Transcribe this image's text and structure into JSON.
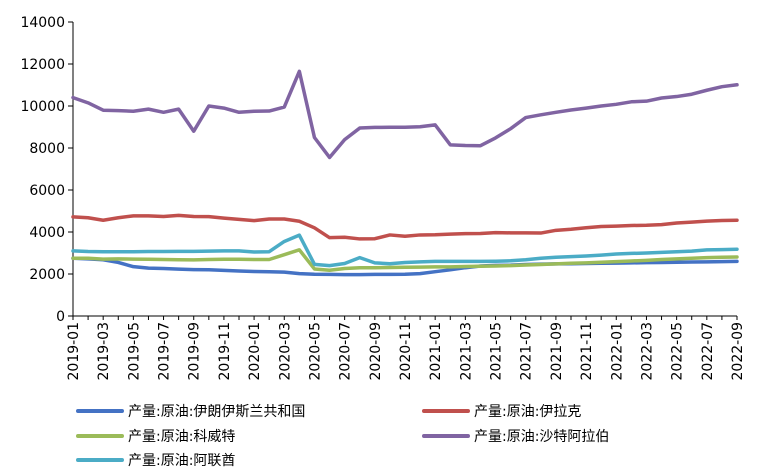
{
  "chart_data": {
    "type": "line",
    "x": [
      "2019-01",
      "2019-02",
      "2019-03",
      "2019-04",
      "2019-05",
      "2019-06",
      "2019-07",
      "2019-08",
      "2019-09",
      "2019-10",
      "2019-11",
      "2019-12",
      "2020-01",
      "2020-02",
      "2020-03",
      "2020-04",
      "2020-05",
      "2020-06",
      "2020-07",
      "2020-08",
      "2020-09",
      "2020-10",
      "2020-11",
      "2020-12",
      "2021-01",
      "2021-02",
      "2021-03",
      "2021-04",
      "2021-05",
      "2021-06",
      "2021-07",
      "2021-08",
      "2021-09",
      "2021-10",
      "2021-11",
      "2021-12",
      "2022-01",
      "2022-02",
      "2022-03",
      "2022-04",
      "2022-05",
      "2022-06",
      "2022-07",
      "2022-08",
      "2022-09"
    ],
    "x_tick_labels": [
      "2019-01",
      "2019-03",
      "2019-05",
      "2019-07",
      "2019-09",
      "2019-11",
      "2020-01",
      "2020-03",
      "2020-05",
      "2020-07",
      "2020-09",
      "2020-11",
      "2021-01",
      "2021-03",
      "2021-05",
      "2021-07",
      "2021-09",
      "2021-11",
      "2022-01",
      "2022-03",
      "2022-05",
      "2022-07",
      "2022-09"
    ],
    "y_ticks": [
      0,
      2000,
      4000,
      6000,
      8000,
      10000,
      12000,
      14000
    ],
    "y_tick_labels": [
      "0",
      "2000",
      "4000",
      "6000",
      "8000",
      "10000",
      "12000",
      "14000"
    ],
    "ylim": [
      0,
      14000
    ],
    "title": "",
    "xlabel": "",
    "ylabel": "",
    "grid": false,
    "legend_position": "bottom",
    "series": [
      {
        "name": "产量:原油:伊朗伊斯兰共和国",
        "color": "#4472C4",
        "values": [
          2750,
          2720,
          2680,
          2550,
          2350,
          2280,
          2260,
          2230,
          2210,
          2200,
          2170,
          2140,
          2120,
          2110,
          2090,
          2020,
          1990,
          1980,
          1970,
          1970,
          1980,
          1980,
          1990,
          2020,
          2110,
          2200,
          2300,
          2380,
          2410,
          2420,
          2450,
          2470,
          2480,
          2490,
          2500,
          2510,
          2520,
          2530,
          2540,
          2550,
          2560,
          2570,
          2580,
          2590,
          2600
        ]
      },
      {
        "name": "产量:原油:伊拉克",
        "color": "#C0504D",
        "values": [
          4720,
          4680,
          4560,
          4680,
          4770,
          4770,
          4740,
          4790,
          4740,
          4730,
          4660,
          4600,
          4540,
          4620,
          4620,
          4510,
          4200,
          3730,
          3750,
          3670,
          3680,
          3860,
          3800,
          3860,
          3870,
          3900,
          3920,
          3930,
          3970,
          3960,
          3960,
          3950,
          4080,
          4130,
          4200,
          4260,
          4280,
          4310,
          4320,
          4350,
          4430,
          4470,
          4520,
          4550,
          4560
        ]
      },
      {
        "name": "产量:原油:科威特",
        "color": "#9BBB59",
        "values": [
          2750,
          2750,
          2710,
          2720,
          2710,
          2700,
          2690,
          2680,
          2670,
          2690,
          2700,
          2700,
          2690,
          2690,
          2920,
          3150,
          2240,
          2180,
          2260,
          2300,
          2300,
          2310,
          2320,
          2330,
          2340,
          2340,
          2360,
          2370,
          2380,
          2400,
          2430,
          2450,
          2480,
          2510,
          2530,
          2560,
          2590,
          2620,
          2650,
          2690,
          2720,
          2750,
          2780,
          2800,
          2810
        ]
      },
      {
        "name": "产量:原油:沙特阿拉伯",
        "color": "#8064A2",
        "values": [
          10400,
          10150,
          9800,
          9780,
          9750,
          9850,
          9700,
          9850,
          8800,
          10000,
          9900,
          9700,
          9750,
          9760,
          9950,
          11650,
          8500,
          7550,
          8400,
          8950,
          8980,
          8990,
          8990,
          9010,
          9100,
          8150,
          8120,
          8110,
          8480,
          8920,
          9450,
          9580,
          9700,
          9810,
          9900,
          10000,
          10080,
          10200,
          10230,
          10380,
          10450,
          10560,
          10750,
          10920,
          11010
        ]
      },
      {
        "name": "产量:原油:阿联酋",
        "color": "#4BACC6",
        "values": [
          3100,
          3070,
          3060,
          3060,
          3060,
          3070,
          3070,
          3080,
          3080,
          3090,
          3100,
          3100,
          3050,
          3060,
          3550,
          3850,
          2460,
          2400,
          2500,
          2780,
          2530,
          2490,
          2550,
          2580,
          2600,
          2600,
          2600,
          2600,
          2610,
          2630,
          2680,
          2750,
          2800,
          2830,
          2860,
          2900,
          2950,
          2980,
          3000,
          3030,
          3060,
          3090,
          3150,
          3160,
          3180
        ]
      }
    ]
  }
}
